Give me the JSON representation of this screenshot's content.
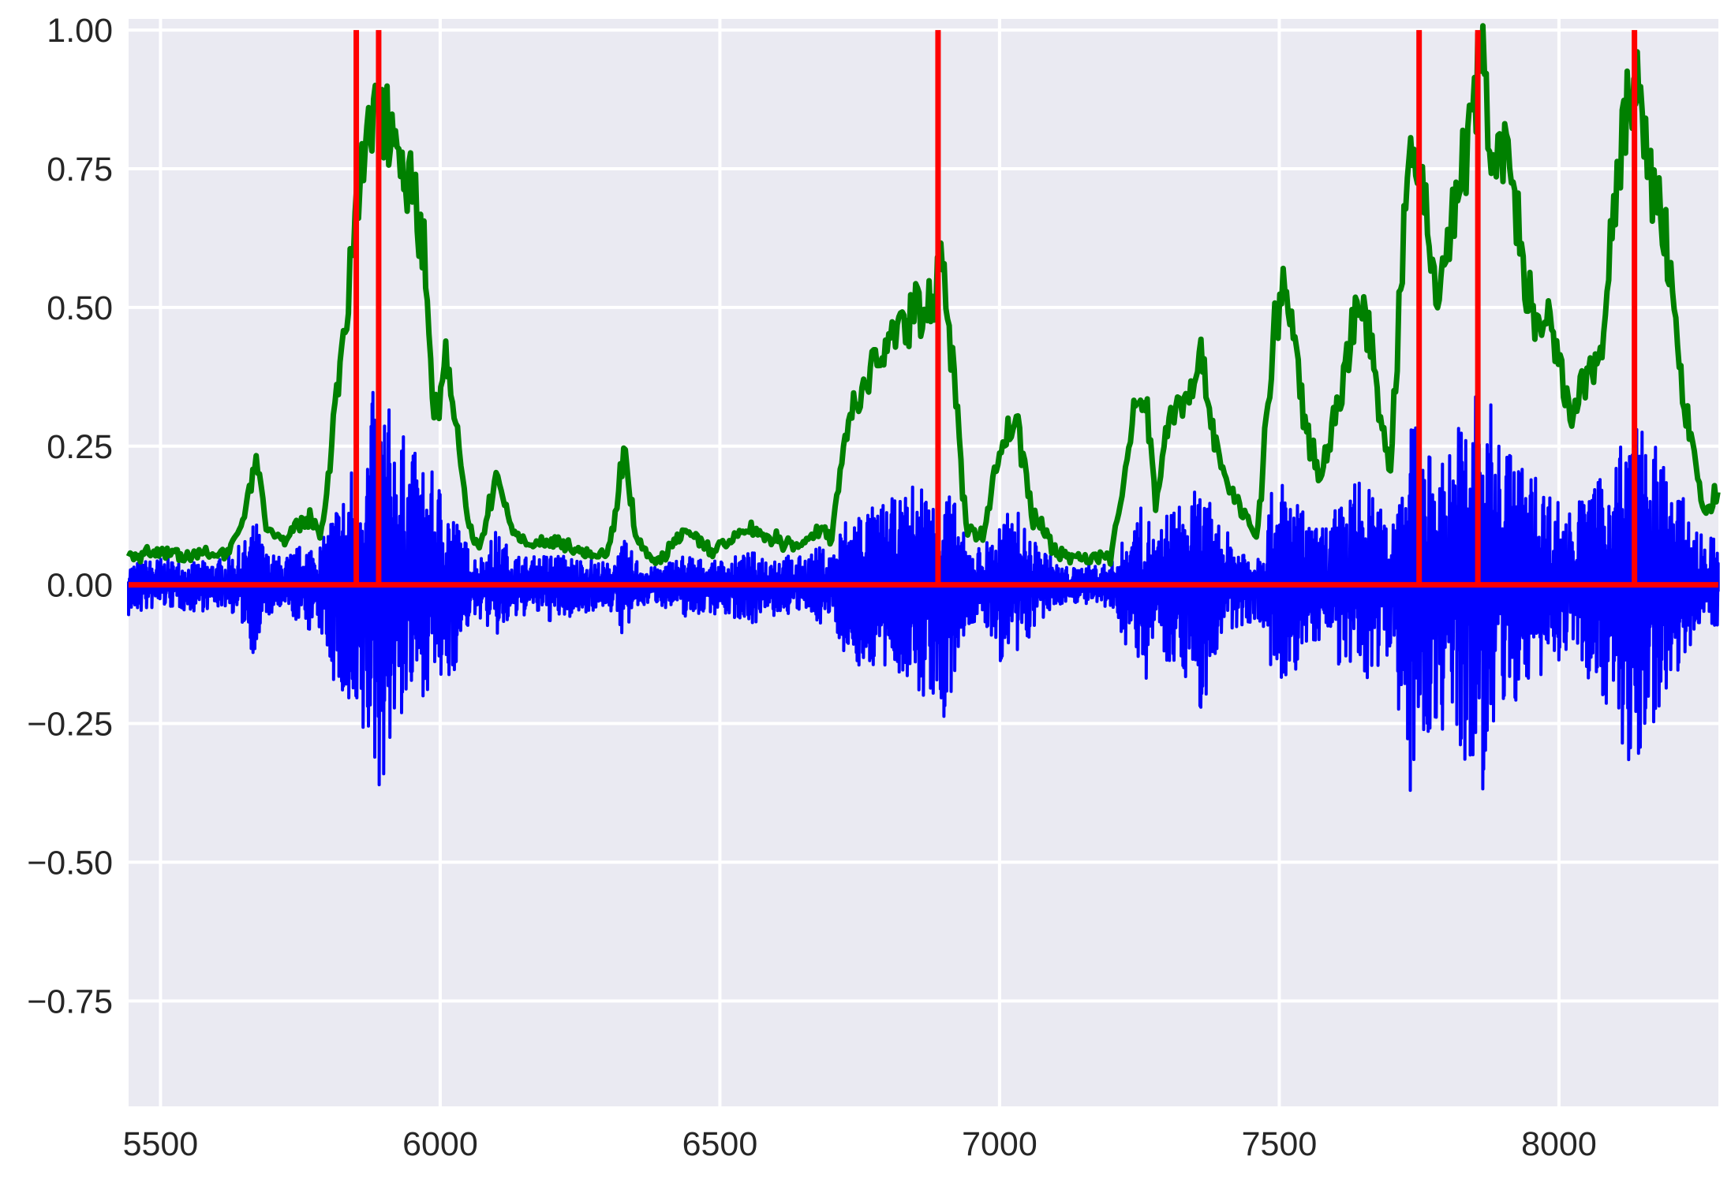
{
  "chart_data": {
    "type": "line",
    "title": "",
    "xlabel": "",
    "ylabel": "",
    "xlim": [
      5443,
      8285
    ],
    "ylim": [
      -0.94,
      1.02
    ],
    "xticks": [
      5500,
      6000,
      6500,
      7000,
      7500,
      8000
    ],
    "xtick_labels": [
      "5500",
      "6000",
      "6500",
      "7000",
      "7500",
      "8000"
    ],
    "yticks": [
      1.0,
      0.75,
      0.5,
      0.25,
      0.0,
      -0.25,
      -0.5,
      -0.75
    ],
    "ytick_labels": [
      "1.00",
      "0.75",
      "0.50",
      "0.25",
      "0.00",
      "−0.25",
      "−0.50",
      "−0.75"
    ],
    "grid": true,
    "style": {
      "background": "#eaeaf2",
      "grid_color": "#ffffff",
      "text_color": "#262626"
    },
    "series": [
      {
        "role": "envelope",
        "color": "#008000",
        "x": [
          5443,
          5500,
          5560,
          5620,
          5650,
          5670,
          5690,
          5720,
          5760,
          5790,
          5810,
          5830,
          5850,
          5870,
          5890,
          5910,
          5930,
          5950,
          5970,
          5990,
          6010,
          6030,
          6050,
          6070,
          6100,
          6130,
          6160,
          6200,
          6240,
          6260,
          6300,
          6330,
          6350,
          6380,
          6400,
          6440,
          6480,
          6520,
          6560,
          6600,
          6640,
          6680,
          6700,
          6720,
          6750,
          6780,
          6800,
          6820,
          6840,
          6860,
          6880,
          6900,
          6920,
          6940,
          6970,
          7000,
          7030,
          7060,
          7080,
          7100,
          7130,
          7160,
          7200,
          7240,
          7260,
          7280,
          7300,
          7330,
          7360,
          7380,
          7400,
          7430,
          7460,
          7490,
          7510,
          7530,
          7550,
          7570,
          7600,
          7620,
          7640,
          7660,
          7680,
          7700,
          7720,
          7740,
          7760,
          7780,
          7800,
          7820,
          7840,
          7860,
          7880,
          7900,
          7920,
          7940,
          7960,
          7980,
          8000,
          8020,
          8040,
          8060,
          8080,
          8100,
          8120,
          8140,
          8160,
          8180,
          8200,
          8220,
          8240,
          8260,
          8285
        ],
        "y": [
          0.05,
          0.06,
          0.05,
          0.06,
          0.12,
          0.24,
          0.1,
          0.08,
          0.12,
          0.1,
          0.3,
          0.45,
          0.68,
          0.78,
          0.9,
          0.82,
          0.8,
          0.7,
          0.62,
          0.3,
          0.4,
          0.28,
          0.1,
          0.06,
          0.2,
          0.1,
          0.07,
          0.08,
          0.07,
          0.06,
          0.05,
          0.25,
          0.08,
          0.04,
          0.05,
          0.1,
          0.06,
          0.08,
          0.1,
          0.08,
          0.07,
          0.1,
          0.08,
          0.26,
          0.34,
          0.4,
          0.44,
          0.46,
          0.48,
          0.5,
          0.52,
          0.58,
          0.35,
          0.1,
          0.09,
          0.24,
          0.3,
          0.12,
          0.1,
          0.06,
          0.05,
          0.05,
          0.05,
          0.3,
          0.35,
          0.14,
          0.3,
          0.34,
          0.4,
          0.3,
          0.2,
          0.14,
          0.08,
          0.45,
          0.55,
          0.4,
          0.28,
          0.2,
          0.3,
          0.4,
          0.52,
          0.45,
          0.3,
          0.22,
          0.6,
          0.78,
          0.7,
          0.52,
          0.6,
          0.72,
          0.8,
          0.95,
          0.8,
          0.78,
          0.7,
          0.55,
          0.45,
          0.47,
          0.4,
          0.3,
          0.35,
          0.38,
          0.45,
          0.7,
          0.85,
          0.9,
          0.72,
          0.7,
          0.55,
          0.35,
          0.24,
          0.12,
          0.18
        ]
      },
      {
        "role": "signal",
        "color": "#0000ff",
        "x": [
          5443,
          5500,
          5560,
          5620,
          5650,
          5670,
          5690,
          5720,
          5760,
          5790,
          5810,
          5830,
          5850,
          5870,
          5890,
          5910,
          5930,
          5950,
          5970,
          5990,
          6010,
          6030,
          6050,
          6070,
          6100,
          6130,
          6160,
          6200,
          6240,
          6260,
          6300,
          6330,
          6350,
          6380,
          6400,
          6440,
          6480,
          6520,
          6560,
          6600,
          6640,
          6680,
          6700,
          6720,
          6750,
          6780,
          6800,
          6820,
          6840,
          6860,
          6880,
          6900,
          6920,
          6940,
          6970,
          7000,
          7030,
          7060,
          7080,
          7100,
          7130,
          7160,
          7200,
          7240,
          7260,
          7280,
          7300,
          7330,
          7360,
          7380,
          7400,
          7430,
          7460,
          7490,
          7510,
          7530,
          7550,
          7570,
          7600,
          7620,
          7640,
          7660,
          7680,
          7700,
          7720,
          7740,
          7760,
          7780,
          7800,
          7820,
          7840,
          7860,
          7880,
          7900,
          7920,
          7940,
          7960,
          7980,
          8000,
          8020,
          8040,
          8060,
          8080,
          8100,
          8120,
          8140,
          8160,
          8180,
          8200,
          8220,
          8240,
          8260,
          8285
        ],
        "ymax": [
          0.04,
          0.05,
          0.04,
          0.05,
          0.08,
          0.12,
          0.06,
          0.05,
          0.08,
          0.08,
          0.15,
          0.18,
          0.25,
          0.3,
          0.4,
          0.32,
          0.28,
          0.25,
          0.22,
          0.2,
          0.18,
          0.12,
          0.07,
          0.05,
          0.1,
          0.06,
          0.05,
          0.06,
          0.05,
          0.05,
          0.04,
          0.08,
          0.05,
          0.03,
          0.04,
          0.06,
          0.04,
          0.05,
          0.06,
          0.06,
          0.05,
          0.07,
          0.06,
          0.12,
          0.15,
          0.14,
          0.16,
          0.15,
          0.18,
          0.2,
          0.16,
          0.2,
          0.15,
          0.08,
          0.07,
          0.12,
          0.14,
          0.08,
          0.07,
          0.04,
          0.03,
          0.04,
          0.04,
          0.12,
          0.15,
          0.08,
          0.14,
          0.15,
          0.18,
          0.14,
          0.1,
          0.08,
          0.06,
          0.18,
          0.2,
          0.16,
          0.12,
          0.1,
          0.14,
          0.16,
          0.2,
          0.18,
          0.14,
          0.12,
          0.26,
          0.3,
          0.26,
          0.22,
          0.25,
          0.3,
          0.34,
          0.4,
          0.32,
          0.28,
          0.25,
          0.22,
          0.2,
          0.18,
          0.16,
          0.14,
          0.16,
          0.18,
          0.2,
          0.26,
          0.28,
          0.3,
          0.26,
          0.25,
          0.2,
          0.16,
          0.12,
          0.08,
          0.1
        ],
        "ymin": [
          -0.06,
          -0.04,
          -0.05,
          -0.04,
          -0.08,
          -0.14,
          -0.06,
          -0.05,
          -0.08,
          -0.1,
          -0.18,
          -0.25,
          -0.36,
          -0.3,
          -0.39,
          -0.3,
          -0.25,
          -0.22,
          -0.2,
          -0.18,
          -0.22,
          -0.14,
          -0.08,
          -0.06,
          -0.1,
          -0.07,
          -0.05,
          -0.07,
          -0.06,
          -0.05,
          -0.04,
          -0.1,
          -0.05,
          -0.03,
          -0.04,
          -0.06,
          -0.05,
          -0.06,
          -0.07,
          -0.06,
          -0.05,
          -0.07,
          -0.06,
          -0.12,
          -0.16,
          -0.15,
          -0.18,
          -0.16,
          -0.2,
          -0.22,
          -0.2,
          -0.3,
          -0.18,
          -0.08,
          -0.07,
          -0.14,
          -0.16,
          -0.08,
          -0.07,
          -0.04,
          -0.03,
          -0.04,
          -0.05,
          -0.14,
          -0.18,
          -0.08,
          -0.14,
          -0.16,
          -0.25,
          -0.16,
          -0.1,
          -0.08,
          -0.06,
          -0.18,
          -0.26,
          -0.16,
          -0.12,
          -0.1,
          -0.14,
          -0.16,
          -0.2,
          -0.18,
          -0.14,
          -0.12,
          -0.28,
          -0.43,
          -0.3,
          -0.25,
          -0.28,
          -0.32,
          -0.38,
          -0.4,
          -0.3,
          -0.25,
          -0.22,
          -0.2,
          -0.18,
          -0.16,
          -0.14,
          -0.12,
          -0.16,
          -0.18,
          -0.2,
          -0.28,
          -0.34,
          -0.37,
          -0.28,
          -0.22,
          -0.18,
          -0.14,
          -0.1,
          -0.06,
          -0.08
        ]
      },
      {
        "role": "events",
        "color": "#ff0000",
        "baseline": 0.0,
        "x": [
          5850,
          5890,
          6890,
          7750,
          7855,
          8135
        ],
        "y": [
          1.0,
          1.0,
          1.0,
          1.0,
          1.0,
          1.0
        ]
      }
    ]
  }
}
